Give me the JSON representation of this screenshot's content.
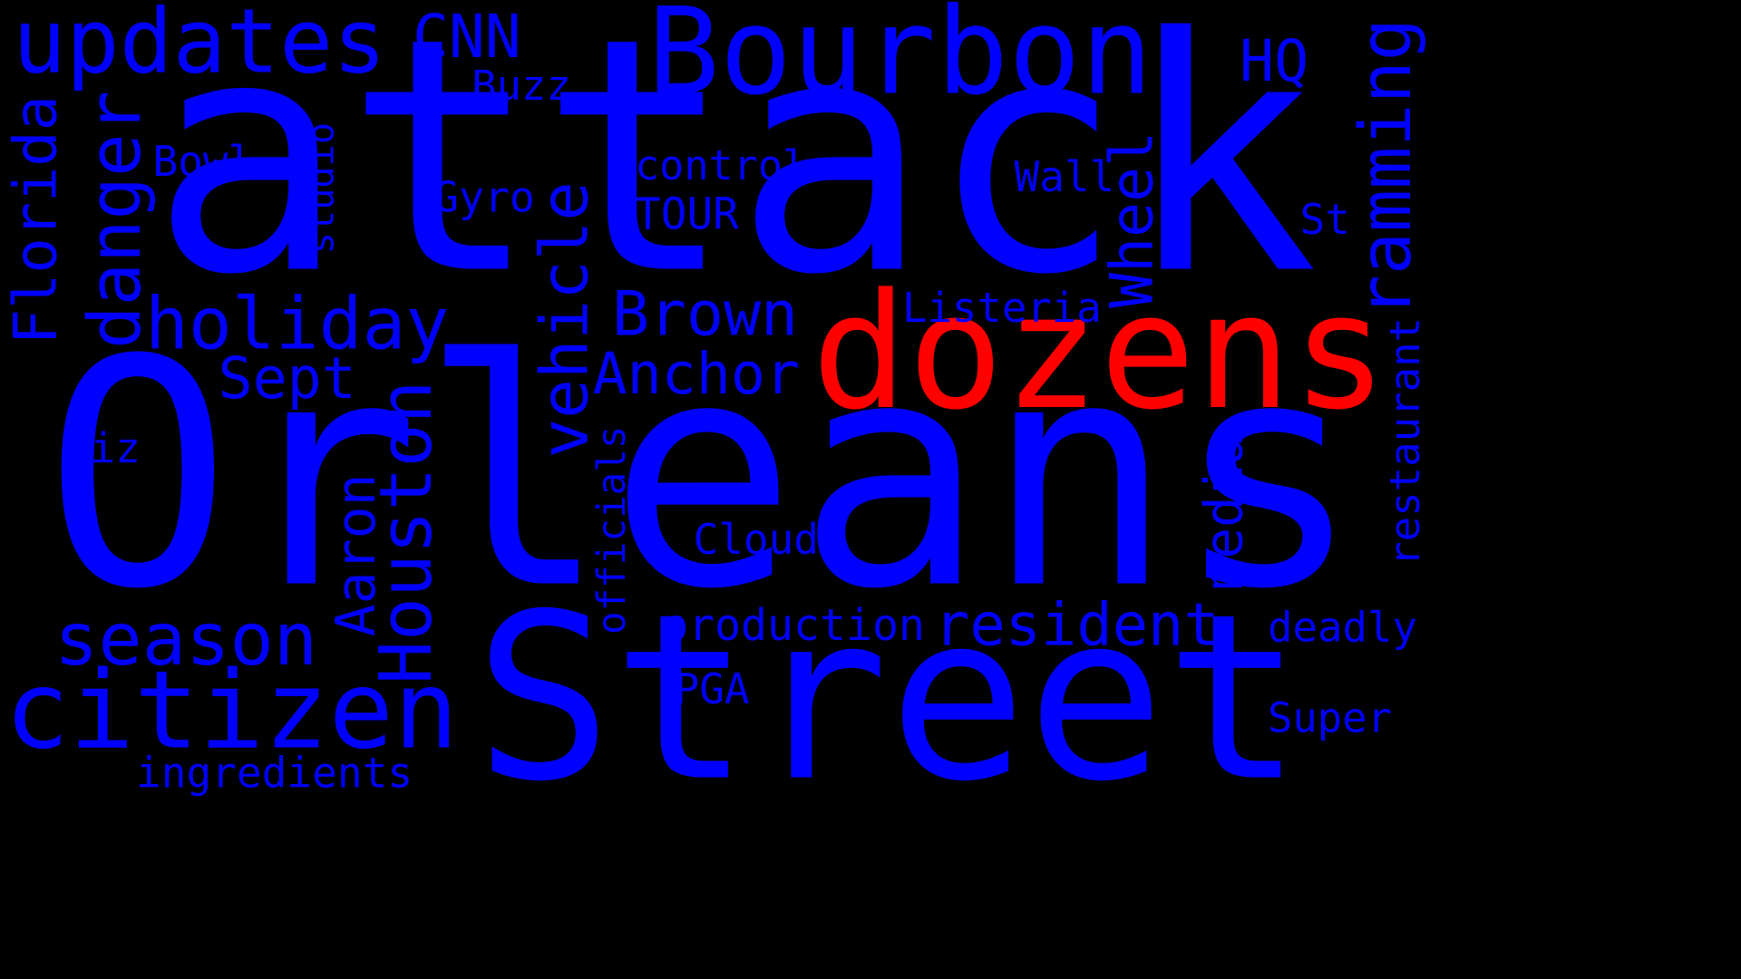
{
  "colors": {
    "background": "#000000",
    "primary": "#0000ff",
    "accent": "#ff0000"
  },
  "words": [
    {
      "id": "attack",
      "text": "attack",
      "color": "primary"
    },
    {
      "id": "orleans",
      "text": "Orleans",
      "color": "primary"
    },
    {
      "id": "street",
      "text": "Street",
      "color": "primary"
    },
    {
      "id": "dozens",
      "text": "dozens",
      "color": "accent"
    },
    {
      "id": "bourbon",
      "text": "Bourbon",
      "color": "primary"
    },
    {
      "id": "updates",
      "text": "updates",
      "color": "primary"
    },
    {
      "id": "citizen",
      "text": "citizen",
      "color": "primary"
    },
    {
      "id": "resident",
      "text": "resident",
      "color": "primary"
    },
    {
      "id": "holiday",
      "text": "holiday",
      "color": "primary"
    },
    {
      "id": "season",
      "text": "season",
      "color": "primary"
    },
    {
      "id": "houston",
      "text": "Houston",
      "color": "primary"
    },
    {
      "id": "vehicle",
      "text": "vehicle",
      "color": "primary"
    },
    {
      "id": "ramming",
      "text": "ramming",
      "color": "primary"
    },
    {
      "id": "danger",
      "text": "danger",
      "color": "primary"
    },
    {
      "id": "brown",
      "text": "Brown",
      "color": "primary"
    },
    {
      "id": "anchor",
      "text": "Anchor",
      "color": "primary"
    },
    {
      "id": "florida",
      "text": "Florida",
      "color": "primary"
    },
    {
      "id": "wheel",
      "text": "Wheel",
      "color": "primary"
    },
    {
      "id": "aaron",
      "text": "Aaron",
      "color": "primary"
    },
    {
      "id": "media",
      "text": "media",
      "color": "primary"
    },
    {
      "id": "cnn",
      "text": "CNN",
      "color": "primary"
    },
    {
      "id": "sept",
      "text": "Sept",
      "color": "primary"
    },
    {
      "id": "production",
      "text": "production",
      "color": "primary"
    },
    {
      "id": "hq",
      "text": "HQ",
      "color": "primary"
    },
    {
      "id": "listeria",
      "text": "Listeria",
      "color": "primary"
    },
    {
      "id": "ingredients",
      "text": "ingredients",
      "color": "primary"
    },
    {
      "id": "restaurant",
      "text": "restaurant",
      "color": "primary"
    },
    {
      "id": "officials",
      "text": "officials",
      "color": "primary"
    },
    {
      "id": "control",
      "text": "control",
      "color": "primary"
    },
    {
      "id": "tour",
      "text": "TOUR",
      "color": "primary"
    },
    {
      "id": "deadly",
      "text": "deadly",
      "color": "primary"
    },
    {
      "id": "cloud",
      "text": "Cloud",
      "color": "primary"
    },
    {
      "id": "super",
      "text": "Super",
      "color": "primary"
    },
    {
      "id": "studio",
      "text": "studio",
      "color": "primary"
    },
    {
      "id": "pga",
      "text": "PGA",
      "color": "primary"
    },
    {
      "id": "gyro",
      "text": "Gyro",
      "color": "primary"
    },
    {
      "id": "wall",
      "text": "Wall",
      "color": "primary"
    },
    {
      "id": "buzz",
      "text": "Buzz",
      "color": "primary"
    },
    {
      "id": "bowl",
      "text": "Bowl",
      "color": "primary"
    },
    {
      "id": "biz",
      "text": "Biz",
      "color": "primary"
    },
    {
      "id": "st",
      "text": "St",
      "color": "primary"
    }
  ]
}
